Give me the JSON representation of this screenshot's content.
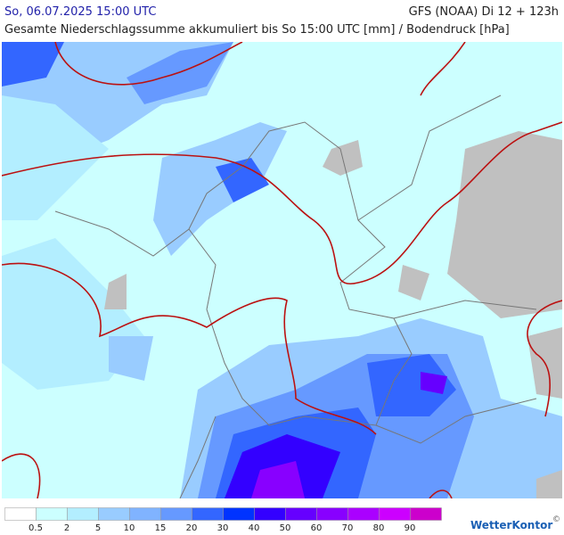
{
  "header": {
    "left": "So, 06.07.2025 15:00 UTC",
    "right": "GFS (NOAA) Di 12 + 123h",
    "subtitle": "Gesamte Niederschlagssumme akkumuliert bis So 15:00 UTC [mm] / Bodendruck [hPa]"
  },
  "legend": {
    "colors": [
      "#ffffff",
      "#ccffff",
      "#b3eeff",
      "#99ccff",
      "#80b3ff",
      "#6699ff",
      "#3366ff",
      "#0033ff",
      "#3300ff",
      "#6600ff",
      "#8800ff",
      "#aa00ff",
      "#cc00ff",
      "#cc00cc"
    ],
    "labels": [
      "0.5",
      "2",
      "5",
      "10",
      "15",
      "20",
      "30",
      "40",
      "50",
      "60",
      "70",
      "80",
      "90"
    ]
  },
  "logo": "WetterKontor",
  "copyright": "©"
}
